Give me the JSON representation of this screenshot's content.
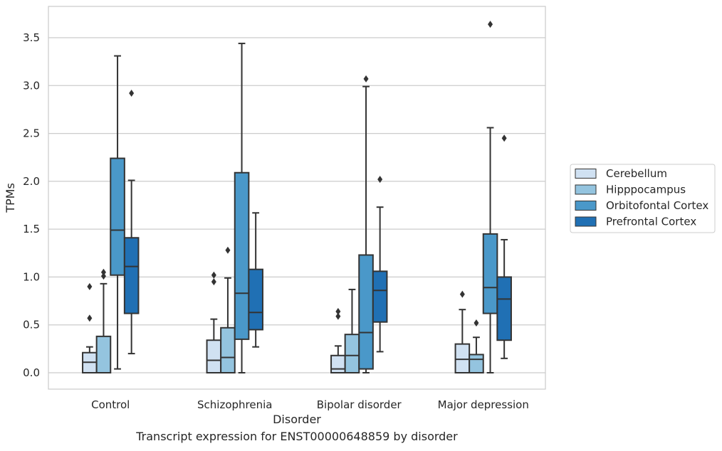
{
  "chart_data": {
    "type": "box",
    "xlabel": "Disorder",
    "ylabel": "TPMs",
    "ylim": [
      -0.18,
      3.83
    ],
    "yticks": [
      0.0,
      0.5,
      1.0,
      1.5,
      2.0,
      2.5,
      3.0,
      3.5
    ],
    "ytick_labels": [
      "0.0",
      "0.5",
      "1.0",
      "1.5",
      "2.0",
      "2.5",
      "3.0",
      "3.5"
    ],
    "grid": "horizontal",
    "legend_position": "right",
    "categories": [
      "Control",
      "Schizophrenia",
      "Bipolar disorder",
      "Major depression"
    ],
    "series": [
      {
        "name": "Cerebellum",
        "color": "#d0e1f2",
        "boxes": [
          {
            "whisker_low": 0.0,
            "q1": 0.0,
            "median": 0.11,
            "q3": 0.21,
            "whisker_high": 0.27,
            "outliers": [
              0.57,
              0.9
            ]
          },
          {
            "whisker_low": 0.0,
            "q1": 0.0,
            "median": 0.13,
            "q3": 0.34,
            "whisker_high": 0.56,
            "outliers": [
              0.95,
              1.02
            ]
          },
          {
            "whisker_low": 0.0,
            "q1": 0.0,
            "median": 0.04,
            "q3": 0.18,
            "whisker_high": 0.28,
            "outliers": [
              0.59,
              0.64
            ]
          },
          {
            "whisker_low": 0.0,
            "q1": 0.0,
            "median": 0.14,
            "q3": 0.3,
            "whisker_high": 0.66,
            "outliers": [
              0.82
            ]
          }
        ]
      },
      {
        "name": "Hipppocampus",
        "color": "#94c4df",
        "boxes": [
          {
            "whisker_low": 0.0,
            "q1": 0.0,
            "median": 0.0,
            "q3": 0.38,
            "whisker_high": 0.93,
            "outliers": [
              1.01,
              1.05
            ]
          },
          {
            "whisker_low": 0.0,
            "q1": 0.0,
            "median": 0.16,
            "q3": 0.47,
            "whisker_high": 0.99,
            "outliers": [
              1.28
            ]
          },
          {
            "whisker_low": 0.0,
            "q1": 0.0,
            "median": 0.18,
            "q3": 0.4,
            "whisker_high": 0.87,
            "outliers": []
          },
          {
            "whisker_low": 0.0,
            "q1": 0.0,
            "median": 0.14,
            "q3": 0.19,
            "whisker_high": 0.37,
            "outliers": [
              0.52
            ]
          }
        ]
      },
      {
        "name": "Orbitofontal Cortex",
        "color": "#4a98c9",
        "boxes": [
          {
            "whisker_low": 0.04,
            "q1": 1.02,
            "median": 1.49,
            "q3": 2.24,
            "whisker_high": 3.31,
            "outliers": []
          },
          {
            "whisker_low": 0.0,
            "q1": 0.35,
            "median": 0.83,
            "q3": 2.09,
            "whisker_high": 3.44,
            "outliers": []
          },
          {
            "whisker_low": 0.0,
            "q1": 0.04,
            "median": 0.42,
            "q3": 1.23,
            "whisker_high": 2.99,
            "outliers": [
              3.07
            ]
          },
          {
            "whisker_low": 0.0,
            "q1": 0.62,
            "median": 0.89,
            "q3": 1.45,
            "whisker_high": 2.56,
            "outliers": [
              3.64
            ]
          }
        ]
      },
      {
        "name": "Prefrontal Cortex",
        "color": "#2070b4",
        "boxes": [
          {
            "whisker_low": 0.2,
            "q1": 0.62,
            "median": 1.11,
            "q3": 1.41,
            "whisker_high": 2.01,
            "outliers": [
              2.92
            ]
          },
          {
            "whisker_low": 0.27,
            "q1": 0.45,
            "median": 0.63,
            "q3": 1.08,
            "whisker_high": 1.67,
            "outliers": []
          },
          {
            "whisker_low": 0.22,
            "q1": 0.53,
            "median": 0.86,
            "q3": 1.06,
            "whisker_high": 1.73,
            "outliers": [
              2.02
            ]
          },
          {
            "whisker_low": 0.15,
            "q1": 0.34,
            "median": 0.77,
            "q3": 1.0,
            "whisker_high": 1.39,
            "outliers": [
              2.45
            ]
          }
        ]
      }
    ]
  },
  "caption": "Transcript expression for ENST00000648859 by disorder"
}
